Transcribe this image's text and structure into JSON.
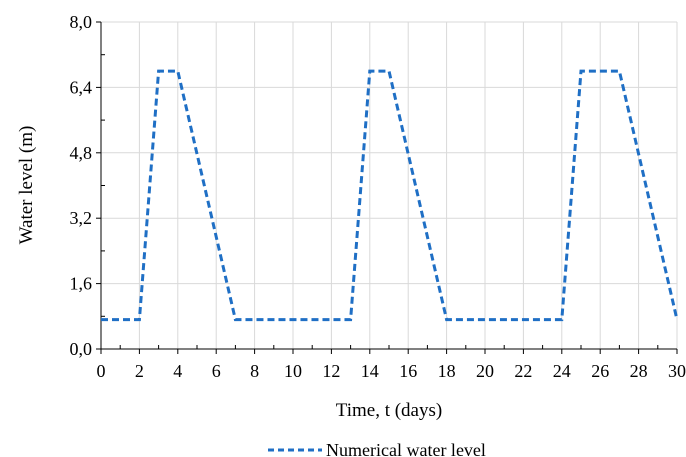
{
  "chart_data": {
    "type": "line",
    "title": "",
    "xlabel": "Time, t (days)",
    "ylabel": "Water level (m)",
    "xlim": [
      0,
      30
    ],
    "ylim": [
      0,
      8.0
    ],
    "xticks": [
      0,
      2,
      4,
      6,
      8,
      10,
      12,
      14,
      16,
      18,
      20,
      22,
      24,
      26,
      28,
      30
    ],
    "xtick_labels": [
      "0",
      "2",
      "4",
      "6",
      "8",
      "10",
      "12",
      "14",
      "16",
      "18",
      "20",
      "22",
      "24",
      "26",
      "28",
      "30"
    ],
    "yticks": [
      0,
      1.6,
      3.2,
      4.8,
      6.4,
      8.0
    ],
    "ytick_labels": [
      "0,0",
      "1,6",
      "3,2",
      "4,8",
      "6,4",
      "8,0"
    ],
    "grid": true,
    "legend_position": "bottom-center",
    "series": [
      {
        "name": "Numerical water level",
        "color": "#1f6fc5",
        "style": "dashed",
        "x": [
          0,
          2,
          3,
          4,
          7,
          13,
          14,
          15,
          18,
          24,
          25,
          27,
          30
        ],
        "y": [
          0.72,
          0.72,
          6.8,
          6.8,
          0.72,
          0.72,
          6.8,
          6.8,
          0.72,
          0.72,
          6.8,
          6.8,
          0.72
        ]
      }
    ]
  }
}
